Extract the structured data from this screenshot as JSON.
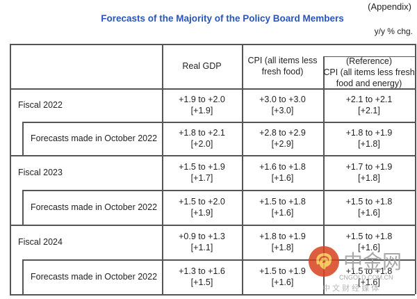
{
  "appendix": "(Appendix)",
  "title": "Forecasts of the Majority of the Policy Board Members",
  "unit": "y/y % chg.",
  "headers": {
    "gdp": "Real GDP",
    "cpi": "CPI (all items less fresh food)",
    "ref": "(Reference)\nCPI (all items less fresh food and energy)"
  },
  "rows": [
    {
      "label": "Fiscal 2022",
      "gdp": "+1.9 to +2.0\n[+1.9]",
      "cpi": "+3.0 to +3.0\n[+3.0]",
      "ref": "+2.1 to +2.1\n[+2.1]"
    },
    {
      "label": "Forecasts made in October 2022",
      "gdp": "+1.8 to +2.1\n[+2.0]",
      "cpi": "+2.8 to +2.9\n[+2.9]",
      "ref": "+1.8 to +1.9\n[+1.8]"
    },
    {
      "label": "Fiscal 2023",
      "gdp": "+1.5 to +1.9\n[+1.7]",
      "cpi": "+1.6 to +1.8\n[+1.6]",
      "ref": "+1.7 to +1.9\n[+1.8]"
    },
    {
      "label": "Forecasts made in October 2022",
      "gdp": "+1.5 to +2.0\n[+1.9]",
      "cpi": "+1.5 to +1.8\n[+1.6]",
      "ref": "+1.5 to +1.8\n[+1.6]"
    },
    {
      "label": "Fiscal 2024",
      "gdp": "+0.9 to +1.3\n[+1.1]",
      "cpi": "+1.8 to +1.9\n[+1.8]",
      "ref": "+1.5 to +1.8\n[+1.6]"
    },
    {
      "label": "Forecasts made in October 2022",
      "gdp": "+1.3 to +1.6\n[+1.5]",
      "cpi": "+1.5 to +1.9\n[+1.6]",
      "ref": "+1.5 to +1.8\n[+1.6]"
    }
  ],
  "watermark": {
    "name": "中金网",
    "domain": "CNGOLD.COM.CN",
    "tagline": "中 文 财 经 媒 体"
  }
}
